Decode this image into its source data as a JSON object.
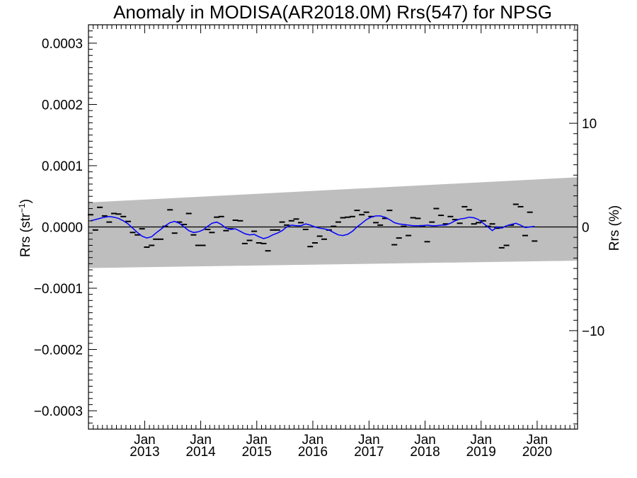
{
  "chart_data": {
    "type": "scatter",
    "title": "Anomaly in MODISA(AR2018.0M) Rrs(547) for NPSG",
    "ylabel": {
      "base": "Rrs (str",
      "sup": "−1",
      "close": ")"
    },
    "ylabel_right": "Rrs (%)",
    "xlim": [
      "2012-01-01",
      "2020-09-20"
    ],
    "ylim": [
      -0.00033,
      0.00033
    ],
    "ylim_right_percent": [
      -19.5,
      19.5
    ],
    "x_ticks": [
      {
        "month": "Jan",
        "year": "2013",
        "date": "2013-01-01"
      },
      {
        "month": "Jan",
        "year": "2014",
        "date": "2014-01-01"
      },
      {
        "month": "Jan",
        "year": "2015",
        "date": "2015-01-01"
      },
      {
        "month": "Jan",
        "year": "2016",
        "date": "2016-01-01"
      },
      {
        "month": "Jan",
        "year": "2017",
        "date": "2017-01-01"
      },
      {
        "month": "Jan",
        "year": "2018",
        "date": "2018-01-01"
      },
      {
        "month": "Jan",
        "year": "2019",
        "date": "2019-01-01"
      },
      {
        "month": "Jan",
        "year": "2020",
        "date": "2020-01-01"
      }
    ],
    "y_ticks": [
      {
        "value": 0.0003,
        "label": "0.0003"
      },
      {
        "value": 0.0002,
        "label": "0.0002"
      },
      {
        "value": 0.0001,
        "label": "0.0001"
      },
      {
        "value": 0.0,
        "label": "0.0000"
      },
      {
        "value": -0.0001,
        "label": "−0.0001"
      },
      {
        "value": -0.0002,
        "label": "−0.0002"
      },
      {
        "value": -0.0003,
        "label": "−0.0003"
      }
    ],
    "y_ticks_right": [
      {
        "value": 10,
        "label": "10"
      },
      {
        "value": 0,
        "label": "0"
      },
      {
        "value": -10,
        "label": "−10"
      }
    ],
    "uncertainty_band": {
      "color": "#bebebe",
      "start": {
        "date": "2012-01-01",
        "upper": 4e-05,
        "lower": -6.7e-05
      },
      "end": {
        "date": "2020-09-20",
        "upper": 8.1e-05,
        "lower": -5.5e-05
      }
    },
    "zero_line": 0.0,
    "series": [
      {
        "kind": "monthly_anomaly",
        "color": "#000000",
        "marker": "dash",
        "points": [
          [
            "2012-01",
            2e-05
          ],
          [
            "2012-02",
            -5e-06
          ],
          [
            "2012-03",
            3.2e-05
          ],
          [
            "2012-04",
            1.8e-05
          ],
          [
            "2012-05",
            8e-06
          ],
          [
            "2012-06",
            2.2e-05
          ],
          [
            "2012-07",
            2.1e-05
          ],
          [
            "2012-08",
            1.7e-05
          ],
          [
            "2012-09",
            9e-06
          ],
          [
            "2012-10",
            -9e-06
          ],
          [
            "2012-11",
            -1.3e-05
          ],
          [
            "2012-12",
            -3e-06
          ],
          [
            "2013-01",
            -3.3e-05
          ],
          [
            "2013-02",
            -3e-05
          ],
          [
            "2013-03",
            -2e-05
          ],
          [
            "2013-04",
            -2e-05
          ],
          [
            "2013-05",
            1e-06
          ],
          [
            "2013-06",
            2.8e-05
          ],
          [
            "2013-07",
            -1e-05
          ],
          [
            "2013-08",
            8e-06
          ],
          [
            "2013-09",
            4e-06
          ],
          [
            "2013-10",
            2.2e-05
          ],
          [
            "2013-11",
            -1.3e-05
          ],
          [
            "2013-12",
            -3e-05
          ],
          [
            "2014-01",
            -3e-05
          ],
          [
            "2014-02",
            -4e-06
          ],
          [
            "2014-03",
            -9e-06
          ],
          [
            "2014-04",
            1.6e-05
          ],
          [
            "2014-05",
            1.7e-05
          ],
          [
            "2014-06",
            -6e-06
          ],
          [
            "2014-07",
            -3e-06
          ],
          [
            "2014-08",
            1.1e-05
          ],
          [
            "2014-09",
            1e-05
          ],
          [
            "2014-10",
            -2.7e-05
          ],
          [
            "2014-11",
            -2.2e-05
          ],
          [
            "2014-12",
            -7e-06
          ],
          [
            "2015-01",
            -2.6e-05
          ],
          [
            "2015-02",
            -2.7e-05
          ],
          [
            "2015-03",
            -3.9e-05
          ],
          [
            "2015-04",
            -5e-06
          ],
          [
            "2015-05",
            -5e-06
          ],
          [
            "2015-06",
            8e-06
          ],
          [
            "2015-07",
            3e-06
          ],
          [
            "2015-08",
            1e-05
          ],
          [
            "2015-09",
            1.3e-05
          ],
          [
            "2015-10",
            7e-06
          ],
          [
            "2015-11",
            -4e-06
          ],
          [
            "2015-12",
            -3.2e-05
          ],
          [
            "2016-01",
            -2.6e-05
          ],
          [
            "2016-02",
            -1.5e-05
          ],
          [
            "2016-03",
            -2e-05
          ],
          [
            "2016-04",
            -5e-06
          ],
          [
            "2016-05",
            1e-06
          ],
          [
            "2016-06",
            8e-06
          ],
          [
            "2016-07",
            1.5e-05
          ],
          [
            "2016-08",
            1.6e-05
          ],
          [
            "2016-09",
            1.7e-05
          ],
          [
            "2016-10",
            2.7e-05
          ],
          [
            "2016-11",
            2e-05
          ],
          [
            "2016-12",
            2.4e-05
          ],
          [
            "2017-01",
            1.7e-05
          ],
          [
            "2017-02",
            7e-06
          ],
          [
            "2017-03",
            3e-06
          ],
          [
            "2017-04",
            1.4e-05
          ],
          [
            "2017-05",
            2.7e-05
          ],
          [
            "2017-06",
            -2.9e-05
          ],
          [
            "2017-07",
            -1.8e-05
          ],
          [
            "2017-08",
            1e-06
          ],
          [
            "2017-09",
            -1.4e-05
          ],
          [
            "2017-10",
            1.5e-05
          ],
          [
            "2017-11",
            1.4e-05
          ],
          [
            "2017-12",
            2e-06
          ],
          [
            "2018-01",
            -2.4e-05
          ],
          [
            "2018-02",
            8e-06
          ],
          [
            "2018-03",
            3e-05
          ],
          [
            "2018-04",
            1.9e-05
          ],
          [
            "2018-05",
            5e-06
          ],
          [
            "2018-06",
            1.7e-05
          ],
          [
            "2018-07",
            1.2e-05
          ],
          [
            "2018-08",
            6e-06
          ],
          [
            "2018-09",
            3.3e-05
          ],
          [
            "2018-10",
            2.8e-05
          ],
          [
            "2018-11",
            5e-06
          ],
          [
            "2018-12",
            7e-06
          ],
          [
            "2019-01",
            1e-05
          ],
          [
            "2019-02",
            1e-06
          ],
          [
            "2019-03",
            5e-06
          ],
          [
            "2019-04",
            -2e-06
          ],
          [
            "2019-05",
            -3.4e-05
          ],
          [
            "2019-06",
            -3e-05
          ],
          [
            "2019-07",
            3e-06
          ],
          [
            "2019-08",
            3.7e-05
          ],
          [
            "2019-09",
            3.3e-05
          ],
          [
            "2019-10",
            -1.4e-05
          ],
          [
            "2019-11",
            2.4e-05
          ],
          [
            "2019-12",
            -2.3e-05
          ]
        ]
      },
      {
        "kind": "smoothed",
        "color": "#0000ff",
        "points": [
          [
            "2012-01",
            1e-05
          ],
          [
            "2012-02",
            1.2e-05
          ],
          [
            "2012-03",
            1.4e-05
          ],
          [
            "2012-04",
            1.6e-05
          ],
          [
            "2012-05",
            1.7e-05
          ],
          [
            "2012-06",
            1.6e-05
          ],
          [
            "2012-07",
            1.4e-05
          ],
          [
            "2012-08",
            1e-05
          ],
          [
            "2012-09",
            5e-06
          ],
          [
            "2012-10",
            -2e-06
          ],
          [
            "2012-11",
            -9e-06
          ],
          [
            "2012-12",
            -1.5e-05
          ],
          [
            "2013-01",
            -1.8e-05
          ],
          [
            "2013-02",
            -1.6e-05
          ],
          [
            "2013-03",
            -1e-05
          ],
          [
            "2013-04",
            -4e-06
          ],
          [
            "2013-05",
            2e-06
          ],
          [
            "2013-06",
            7e-06
          ],
          [
            "2013-07",
            9e-06
          ],
          [
            "2013-08",
            6e-06
          ],
          [
            "2013-09",
            0.0
          ],
          [
            "2013-10",
            -6e-06
          ],
          [
            "2013-11",
            -9e-06
          ],
          [
            "2013-12",
            -8e-06
          ],
          [
            "2014-01",
            -5e-06
          ],
          [
            "2014-02",
            1e-06
          ],
          [
            "2014-03",
            6e-06
          ],
          [
            "2014-04",
            8e-06
          ],
          [
            "2014-05",
            4e-06
          ],
          [
            "2014-06",
            -2e-06
          ],
          [
            "2014-07",
            -4e-06
          ],
          [
            "2014-08",
            -3e-06
          ],
          [
            "2014-09",
            -7e-06
          ],
          [
            "2014-10",
            -1.1e-05
          ],
          [
            "2014-11",
            -1.3e-05
          ],
          [
            "2014-12",
            -1.2e-05
          ],
          [
            "2015-01",
            -1.6e-05
          ],
          [
            "2015-02",
            -1.9e-05
          ],
          [
            "2015-03",
            -1.7e-05
          ],
          [
            "2015-04",
            -1.3e-05
          ],
          [
            "2015-05",
            -1e-05
          ],
          [
            "2015-06",
            -6e-06
          ],
          [
            "2015-07",
            0.0
          ],
          [
            "2015-08",
            3e-06
          ],
          [
            "2015-09",
            2e-06
          ],
          [
            "2015-10",
            2e-06
          ],
          [
            "2015-11",
            5e-06
          ],
          [
            "2015-12",
            3e-06
          ],
          [
            "2016-01",
            0.0
          ],
          [
            "2016-02",
            -2e-06
          ],
          [
            "2016-03",
            -3e-06
          ],
          [
            "2016-04",
            -5e-06
          ],
          [
            "2016-05",
            -9e-06
          ],
          [
            "2016-06",
            -1.3e-05
          ],
          [
            "2016-07",
            -1.4e-05
          ],
          [
            "2016-08",
            -1.2e-05
          ],
          [
            "2016-09",
            -7e-06
          ],
          [
            "2016-10",
            0.0
          ],
          [
            "2016-11",
            6e-06
          ],
          [
            "2016-12",
            1.2e-05
          ],
          [
            "2017-01",
            1.6e-05
          ],
          [
            "2017-02",
            1.8e-05
          ],
          [
            "2017-03",
            1.8e-05
          ],
          [
            "2017-04",
            1.6e-05
          ],
          [
            "2017-05",
            1.2e-05
          ],
          [
            "2017-06",
            7e-06
          ],
          [
            "2017-07",
            5e-06
          ],
          [
            "2017-08",
            4e-06
          ],
          [
            "2017-09",
            3e-06
          ],
          [
            "2017-10",
            2e-06
          ],
          [
            "2017-11",
            2e-06
          ],
          [
            "2017-12",
            2e-06
          ],
          [
            "2018-01",
            3e-06
          ],
          [
            "2018-02",
            2e-06
          ],
          [
            "2018-03",
            2e-06
          ],
          [
            "2018-04",
            3e-06
          ],
          [
            "2018-05",
            3e-06
          ],
          [
            "2018-06",
            6e-06
          ],
          [
            "2018-07",
            1e-05
          ],
          [
            "2018-08",
            1.3e-05
          ],
          [
            "2018-09",
            1.4e-05
          ],
          [
            "2018-10",
            1.6e-05
          ],
          [
            "2018-11",
            1.5e-05
          ],
          [
            "2018-12",
            1.2e-05
          ],
          [
            "2019-01",
            6e-06
          ],
          [
            "2019-02",
            0.0
          ],
          [
            "2019-03",
            -6e-06
          ],
          [
            "2019-04",
            0.0
          ],
          [
            "2019-05",
            -2e-06
          ],
          [
            "2019-06",
            2e-06
          ],
          [
            "2019-07",
            4e-06
          ],
          [
            "2019-08",
            6e-06
          ],
          [
            "2019-09",
            3e-06
          ],
          [
            "2019-10",
            -1e-06
          ],
          [
            "2019-11",
            0.0
          ],
          [
            "2019-12",
            1e-06
          ]
        ]
      }
    ]
  }
}
